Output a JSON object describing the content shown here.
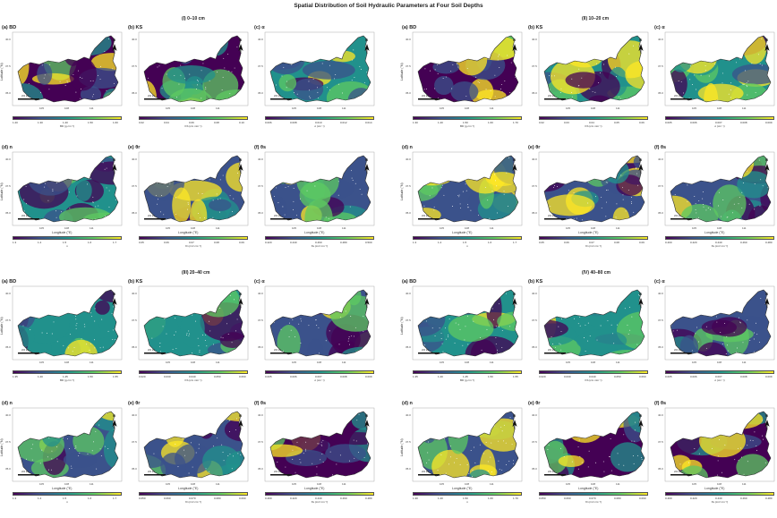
{
  "title": "Spatial Distribution of Soil Hydraulic Parameters at Four Soil Depths",
  "colors": {
    "viridis": [
      "#440154",
      "#3b528b",
      "#21918c",
      "#5ec962",
      "#fde725"
    ],
    "border": "#333333",
    "dots": "#ffffff"
  },
  "axis": {
    "latitude_label": "Latitude (°N)",
    "longitude_label": "Longitude (°E)",
    "lat_ticks": [
      "40.0",
      "37.5",
      "35.0"
    ],
    "lon_ticks": [
      "105",
      "108",
      "111"
    ],
    "north": "N",
    "scale": "200 km"
  },
  "depths": [
    {
      "label": "(I) 0–10 cm",
      "panels": [
        {
          "label": "(a) BD",
          "ticks": [
            "1.20",
            "1.30",
            "1.40",
            "1.50",
            "1.60"
          ],
          "unit": "BD (g cm⁻³)"
        },
        {
          "label": "(b) KS",
          "ticks": [
            "0.02",
            "0.04",
            "0.06",
            "0.08",
            "0.10"
          ],
          "unit": "KS (cm min⁻¹)"
        },
        {
          "label": "(c) α",
          "ticks": [
            "0.006",
            "0.008",
            "0.010",
            "0.012",
            "0.014"
          ],
          "unit": "α (cm⁻¹)"
        },
        {
          "label": "(d) n",
          "ticks": [
            "1.3",
            "1.4",
            "1.5",
            "1.6",
            "1.7"
          ],
          "unit": "n"
        },
        {
          "label": "(e) θr",
          "ticks": [
            "0.05",
            "0.06",
            "0.07",
            "0.08",
            "0.09"
          ],
          "unit": "θr (cm³ cm⁻³)"
        },
        {
          "label": "(f) θs",
          "ticks": [
            "0.420",
            "0.440",
            "0.460",
            "0.480",
            "0.500"
          ],
          "unit": "θs (cm³ cm⁻³)"
        }
      ]
    },
    {
      "label": "(II) 10–20 cm",
      "panels": [
        {
          "label": "(a) BD",
          "ticks": [
            "1.30",
            "1.40",
            "1.50",
            "1.60",
            "1.70"
          ],
          "unit": "BD (g cm⁻³)"
        },
        {
          "label": "(b) KS",
          "ticks": [
            "0.02",
            "0.03",
            "0.04",
            "0.05",
            "0.06"
          ],
          "unit": "KS (cm min⁻¹)"
        },
        {
          "label": "(c) α",
          "ticks": [
            "0.005",
            "0.006",
            "0.007",
            "0.008",
            "0.009"
          ],
          "unit": "α (cm⁻¹)"
        },
        {
          "label": "(d) n",
          "ticks": [
            "1.3",
            "1.4",
            "1.5",
            "1.6",
            "1.7"
          ],
          "unit": "n"
        },
        {
          "label": "(e) θr",
          "ticks": [
            "0.05",
            "0.06",
            "0.07",
            "0.08",
            "0.09"
          ],
          "unit": "θr (cm³ cm⁻³)"
        },
        {
          "label": "(f) θs",
          "ticks": [
            "0.400",
            "0.420",
            "0.440",
            "0.460",
            "0.480"
          ],
          "unit": "θs (cm³ cm⁻³)"
        }
      ]
    },
    {
      "label": "(III) 20–40 cm",
      "panels": [
        {
          "label": "(a) BD",
          "ticks": [
            "1.35",
            "1.40",
            "1.45",
            "1.50",
            "1.55"
          ],
          "unit": "BD (g cm⁻³)"
        },
        {
          "label": "(b) KS",
          "ticks": [
            "0.020",
            "0.030",
            "0.040",
            "0.050",
            "0.060"
          ],
          "unit": "KS (cm min⁻¹)"
        },
        {
          "label": "(c) α",
          "ticks": [
            "0.005",
            "0.006",
            "0.007",
            "0.008",
            "0.009"
          ],
          "unit": "α (cm⁻¹)"
        },
        {
          "label": "(d) n",
          "ticks": [
            "1.3",
            "1.4",
            "1.5",
            "1.6",
            "1.7"
          ],
          "unit": "n"
        },
        {
          "label": "(e) θr",
          "ticks": [
            "0.050",
            "0.060",
            "0.070",
            "0.080",
            "0.090"
          ],
          "unit": "θr (cm³ cm⁻³)"
        },
        {
          "label": "(f) θs",
          "ticks": [
            "0.400",
            "0.420",
            "0.440",
            "0.460",
            "0.480"
          ],
          "unit": "θs (cm³ cm⁻³)"
        }
      ]
    },
    {
      "label": "(IV) 40–80 cm",
      "panels": [
        {
          "label": "(a) BD",
          "ticks": [
            "1.35",
            "1.40",
            "1.45",
            "1.50",
            "1.55"
          ],
          "unit": "BD (g cm⁻³)"
        },
        {
          "label": "(b) KS",
          "ticks": [
            "0.020",
            "0.030",
            "0.040",
            "0.050",
            "0.060"
          ],
          "unit": "KS (cm min⁻¹)"
        },
        {
          "label": "(c) α",
          "ticks": [
            "0.005",
            "0.006",
            "0.007",
            "0.008",
            "0.009"
          ],
          "unit": "α (cm⁻¹)"
        },
        {
          "label": "(d) n",
          "ticks": [
            "1.30",
            "1.40",
            "1.50",
            "1.60",
            "1.70"
          ],
          "unit": "n"
        },
        {
          "label": "(e) θr",
          "ticks": [
            "0.050",
            "0.060",
            "0.070",
            "0.080",
            "0.090"
          ],
          "unit": "θr (cm³ cm⁻³)"
        },
        {
          "label": "(f) θs",
          "ticks": [
            "0.400",
            "0.420",
            "0.440",
            "0.460",
            "0.480"
          ],
          "unit": "θs (cm³ cm⁻³)"
        }
      ]
    }
  ]
}
